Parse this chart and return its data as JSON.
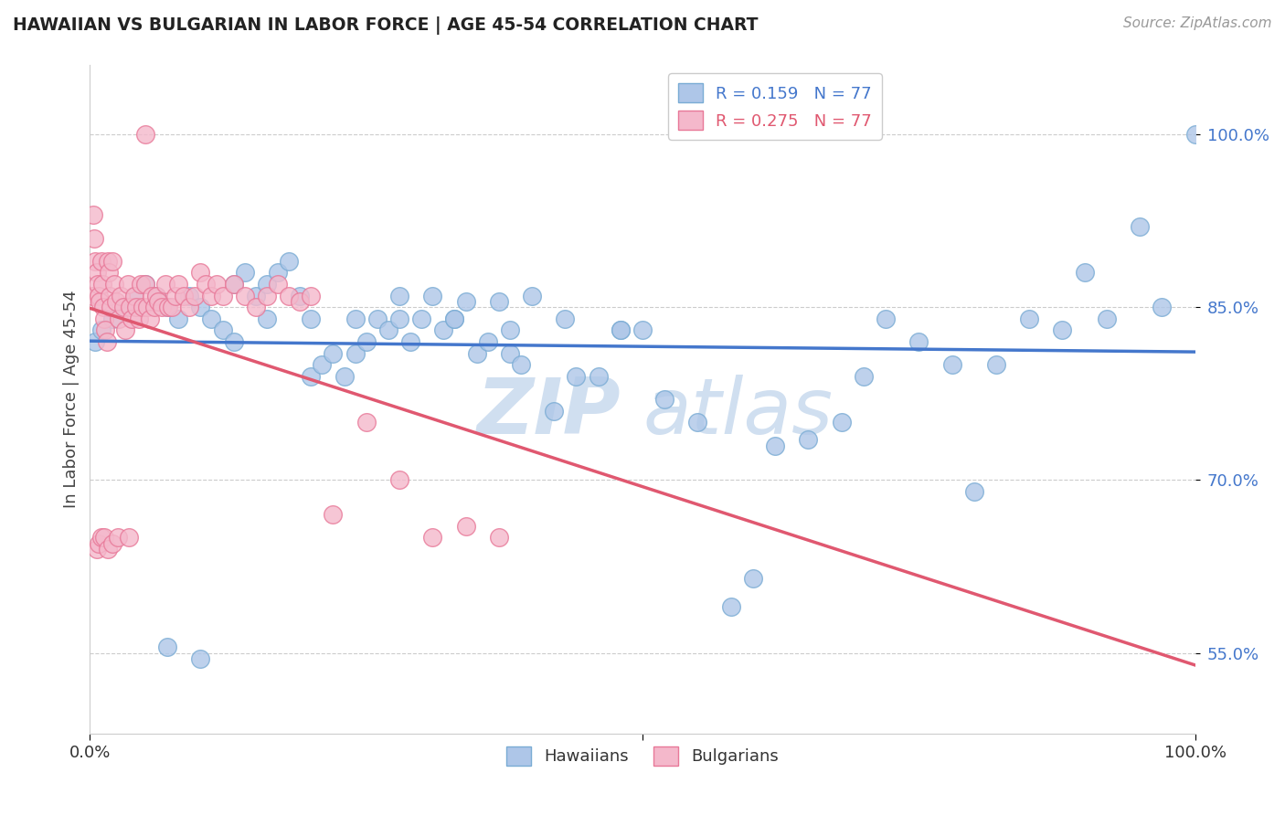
{
  "title": "HAWAIIAN VS BULGARIAN IN LABOR FORCE | AGE 45-54 CORRELATION CHART",
  "source": "Source: ZipAtlas.com",
  "ylabel": "In Labor Force | Age 45-54",
  "ytick_labels": [
    "55.0%",
    "70.0%",
    "85.0%",
    "100.0%"
  ],
  "ytick_values": [
    0.55,
    0.7,
    0.85,
    1.0
  ],
  "xlim": [
    0.0,
    1.0
  ],
  "ylim": [
    0.48,
    1.06
  ],
  "hawaiian_color": "#aec6e8",
  "hawaiian_edge": "#7aacd4",
  "bulgarian_color": "#f4b8cb",
  "bulgarian_edge": "#e87898",
  "trend_hawaiian_color": "#4477cc",
  "trend_bulgarian_color": "#e05870",
  "watermark_color": "#d0dff0",
  "tick_color": "#4477cc",
  "legend_hawaiian_label": "Hawaiians",
  "legend_bulgarian_label": "Bulgarians",
  "legend_R_hawaiian": "R = 0.159   N = 77",
  "legend_R_bulgarian": "R = 0.275   N = 77",
  "hawaiian_x": [
    0.005,
    0.01,
    0.02,
    0.03,
    0.04,
    0.05,
    0.06,
    0.07,
    0.08,
    0.09,
    0.1,
    0.11,
    0.12,
    0.13,
    0.14,
    0.15,
    0.16,
    0.17,
    0.18,
    0.19,
    0.2,
    0.21,
    0.22,
    0.23,
    0.24,
    0.25,
    0.26,
    0.27,
    0.28,
    0.29,
    0.3,
    0.31,
    0.32,
    0.33,
    0.34,
    0.35,
    0.36,
    0.37,
    0.38,
    0.39,
    0.4,
    0.42,
    0.44,
    0.46,
    0.48,
    0.5,
    0.52,
    0.55,
    0.58,
    0.6,
    0.62,
    0.65,
    0.68,
    0.7,
    0.72,
    0.75,
    0.78,
    0.8,
    0.82,
    0.85,
    0.88,
    0.9,
    0.92,
    0.95,
    0.97,
    1.0,
    0.07,
    0.1,
    0.13,
    0.16,
    0.2,
    0.24,
    0.28,
    0.33,
    0.38,
    0.43,
    0.48
  ],
  "hawaiian_y": [
    0.82,
    0.83,
    0.84,
    0.85,
    0.86,
    0.87,
    0.86,
    0.85,
    0.84,
    0.86,
    0.85,
    0.84,
    0.83,
    0.87,
    0.88,
    0.86,
    0.87,
    0.88,
    0.89,
    0.86,
    0.79,
    0.8,
    0.81,
    0.79,
    0.81,
    0.82,
    0.84,
    0.83,
    0.84,
    0.82,
    0.84,
    0.86,
    0.83,
    0.84,
    0.855,
    0.81,
    0.82,
    0.855,
    0.81,
    0.8,
    0.86,
    0.76,
    0.79,
    0.79,
    0.83,
    0.83,
    0.77,
    0.75,
    0.59,
    0.615,
    0.73,
    0.735,
    0.75,
    0.79,
    0.84,
    0.82,
    0.8,
    0.69,
    0.8,
    0.84,
    0.83,
    0.88,
    0.84,
    0.92,
    0.85,
    1.0,
    0.555,
    0.545,
    0.82,
    0.84,
    0.84,
    0.84,
    0.86,
    0.84,
    0.83,
    0.84,
    0.83
  ],
  "bulgarian_x": [
    0.002,
    0.003,
    0.004,
    0.005,
    0.006,
    0.007,
    0.008,
    0.009,
    0.01,
    0.011,
    0.012,
    0.013,
    0.014,
    0.015,
    0.016,
    0.017,
    0.018,
    0.019,
    0.02,
    0.022,
    0.024,
    0.026,
    0.028,
    0.03,
    0.032,
    0.034,
    0.036,
    0.038,
    0.04,
    0.042,
    0.044,
    0.046,
    0.048,
    0.05,
    0.052,
    0.054,
    0.056,
    0.058,
    0.06,
    0.062,
    0.065,
    0.068,
    0.071,
    0.074,
    0.077,
    0.08,
    0.085,
    0.09,
    0.095,
    0.1,
    0.105,
    0.11,
    0.115,
    0.12,
    0.13,
    0.14,
    0.15,
    0.16,
    0.17,
    0.18,
    0.19,
    0.2,
    0.22,
    0.25,
    0.28,
    0.31,
    0.34,
    0.37,
    0.006,
    0.008,
    0.01,
    0.013,
    0.016,
    0.02,
    0.025,
    0.035,
    0.05
  ],
  "bulgarian_y": [
    0.86,
    0.93,
    0.91,
    0.89,
    0.88,
    0.87,
    0.86,
    0.855,
    0.89,
    0.87,
    0.85,
    0.84,
    0.83,
    0.82,
    0.89,
    0.88,
    0.86,
    0.85,
    0.89,
    0.87,
    0.855,
    0.84,
    0.86,
    0.85,
    0.83,
    0.87,
    0.85,
    0.84,
    0.86,
    0.85,
    0.84,
    0.87,
    0.85,
    0.87,
    0.85,
    0.84,
    0.86,
    0.85,
    0.86,
    0.855,
    0.85,
    0.87,
    0.85,
    0.85,
    0.86,
    0.87,
    0.86,
    0.85,
    0.86,
    0.88,
    0.87,
    0.86,
    0.87,
    0.86,
    0.87,
    0.86,
    0.85,
    0.86,
    0.87,
    0.86,
    0.855,
    0.86,
    0.67,
    0.75,
    0.7,
    0.65,
    0.66,
    0.65,
    0.64,
    0.645,
    0.65,
    0.65,
    0.64,
    0.645,
    0.65,
    0.65,
    1.0
  ]
}
